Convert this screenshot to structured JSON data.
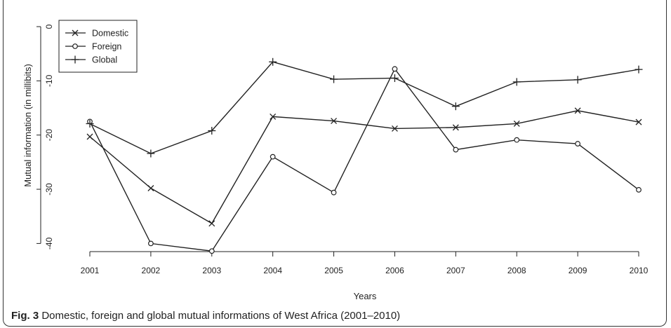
{
  "caption": {
    "label": "Fig. 3",
    "text": " Domestic, foreign and global mutual informations of West Africa (2001–2010)"
  },
  "chart_data": {
    "type": "line",
    "title": "",
    "xlabel": "Years",
    "ylabel": "Mutual information (in millibits)",
    "x": [
      2001,
      2002,
      2003,
      2004,
      2005,
      2006,
      2007,
      2008,
      2009,
      2010
    ],
    "xticks": [
      "2001",
      "2002",
      "2003",
      "2004",
      "2005",
      "2006",
      "2007",
      "2008",
      "2009",
      "2010"
    ],
    "yticks": [
      0,
      -10,
      -20,
      -30,
      -40
    ],
    "ytick_labels": [
      "0",
      "-10",
      "-20",
      "-30",
      "-40"
    ],
    "ylim": [
      -41.5,
      0
    ],
    "xlim": [
      2001,
      2010
    ],
    "legend_position": "top-left",
    "grid": false,
    "series": [
      {
        "name": "Domestic",
        "marker": "x",
        "values": [
          -20.3,
          -29.8,
          -36.3,
          -16.6,
          -17.4,
          -18.8,
          -18.6,
          -17.9,
          -15.5,
          -17.6
        ]
      },
      {
        "name": "Foreign",
        "marker": "o",
        "values": [
          -17.5,
          -40.0,
          -41.4,
          -24.0,
          -30.6,
          -7.8,
          -22.7,
          -20.9,
          -21.6,
          -30.1
        ]
      },
      {
        "name": "Global",
        "marker": "+",
        "values": [
          -17.9,
          -23.4,
          -19.2,
          -6.5,
          -9.7,
          -9.5,
          -14.7,
          -10.2,
          -9.8,
          -7.9
        ]
      }
    ],
    "colors": {
      "line": "#222222"
    }
  }
}
